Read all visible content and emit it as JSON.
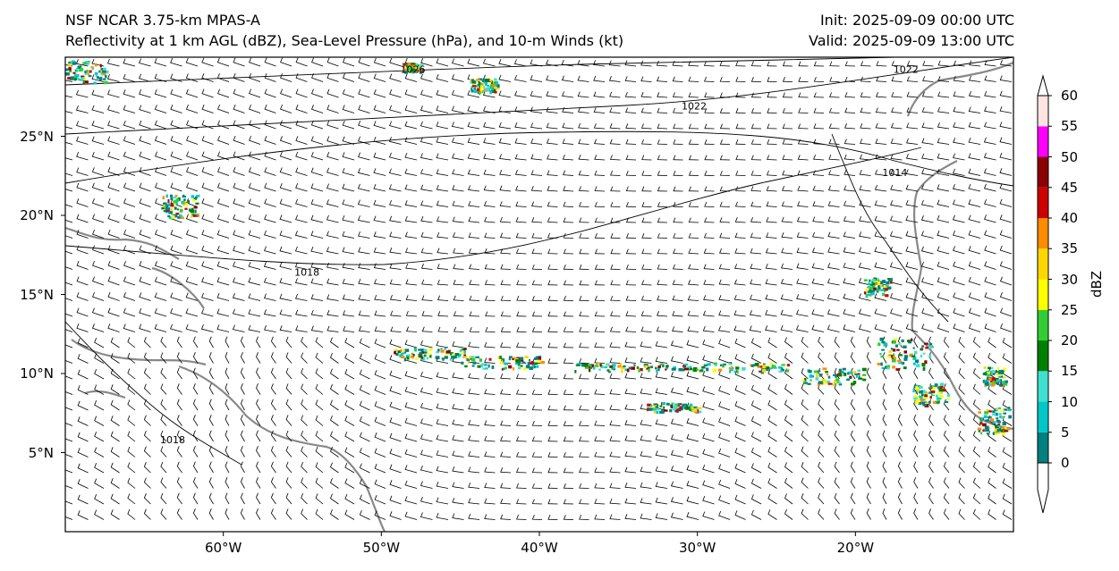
{
  "titles": {
    "left_line1": "NSF NCAR 3.75-km MPAS-A",
    "left_line2": "Reflectivity at 1 km AGL (dBZ), Sea-Level Pressure (hPa), and 10-m Winds (kt)",
    "right_line1": "Init: 2025-09-09 00:00 UTC",
    "right_line2": "Valid: 2025-09-09 13:00 UTC"
  },
  "map": {
    "lon_range": [
      -70,
      -10
    ],
    "lat_range": [
      0,
      30
    ],
    "lat_ticks": [
      {
        "value": 25,
        "label": "25°N"
      },
      {
        "value": 20,
        "label": "20°N"
      },
      {
        "value": 15,
        "label": "15°N"
      },
      {
        "value": 10,
        "label": "10°N"
      },
      {
        "value": 5,
        "label": "5°N"
      }
    ],
    "lon_ticks": [
      {
        "value": -60,
        "label": "60°W"
      },
      {
        "value": -50,
        "label": "50°W"
      },
      {
        "value": -40,
        "label": "40°W"
      },
      {
        "value": -30,
        "label": "30°W"
      },
      {
        "value": -20,
        "label": "20°W"
      }
    ],
    "isobar_labels": [
      {
        "text": "1026",
        "lon": -48.8,
        "lat": 29.0
      },
      {
        "text": "1022",
        "lon": -31.0,
        "lat": 26.7
      },
      {
        "text": "1018",
        "lon": -55.5,
        "lat": 16.2
      },
      {
        "text": "1018",
        "lon": -64.0,
        "lat": 5.6
      },
      {
        "text": "1014",
        "lon": -18.3,
        "lat": 22.5
      },
      {
        "text": "1022",
        "lon": -17.6,
        "lat": 29.0
      }
    ]
  },
  "colorbar": {
    "label": "dBZ",
    "ticks": [
      "0",
      "5",
      "10",
      "15",
      "20",
      "25",
      "30",
      "35",
      "40",
      "45",
      "50",
      "55",
      "60"
    ],
    "colors": [
      "#008080",
      "#00c8c8",
      "#40e0d0",
      "#008000",
      "#32cd32",
      "#ffff00",
      "#ffd700",
      "#ff8c00",
      "#cd0000",
      "#8b0000",
      "#ff00ff",
      "#ffe4e1"
    ]
  }
}
